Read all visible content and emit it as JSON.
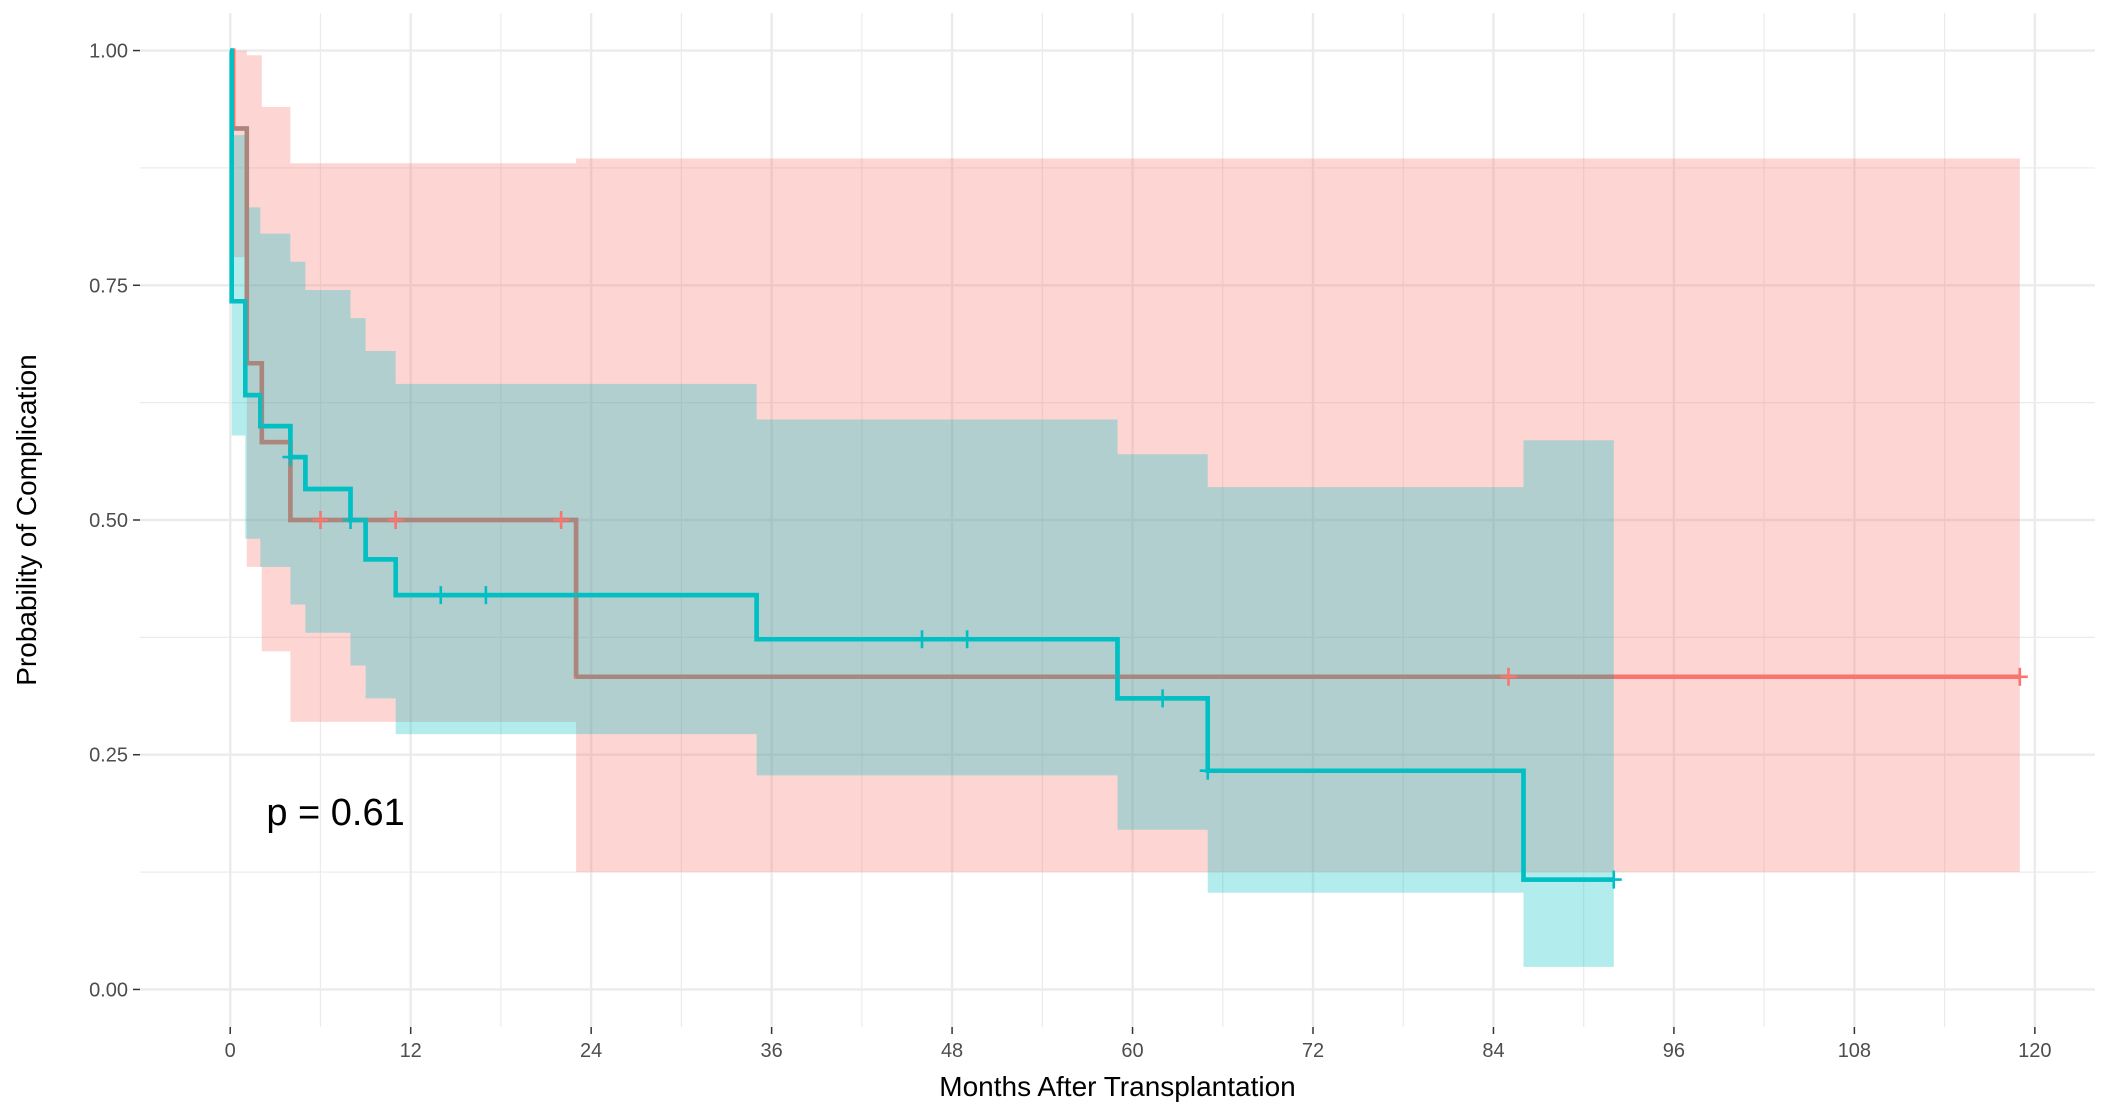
{
  "chart_data": {
    "type": "line",
    "subtype": "kaplan-meier step",
    "title": "",
    "xlabel": "Months After Transplantation",
    "ylabel": "Probability of Complication",
    "xlim": [
      -6,
      124
    ],
    "ylim": [
      -0.04,
      1.04
    ],
    "x_ticks": [
      0,
      12,
      24,
      36,
      48,
      60,
      72,
      84,
      96,
      108,
      120
    ],
    "x_tick_labels": [
      "0",
      "12",
      "24",
      "36",
      "48",
      "60",
      "72",
      "84",
      "96",
      "108",
      "120"
    ],
    "y_ticks": [
      0,
      0.25,
      0.5,
      0.75,
      1.0
    ],
    "y_tick_labels": [
      "0.00",
      "0.25",
      "0.50",
      "0.75",
      "1.00"
    ],
    "grid": true,
    "legend": "none",
    "annotation": "p = 0.61",
    "annotation_pos": [
      2.4,
      0.19
    ],
    "colors": {
      "red_group": "#F8766D",
      "teal_group": "#00BFC4",
      "overlap_line": "#A9877F",
      "panel_grid": "#EBEBEB"
    },
    "series": [
      {
        "color": "#F8766D",
        "steps": [
          [
            0,
            1.0
          ],
          [
            0.2,
            0.917
          ],
          [
            1.1,
            0.667
          ],
          [
            2.1,
            0.583
          ],
          [
            4.0,
            0.5
          ],
          [
            23.0,
            0.333
          ],
          [
            119.0,
            0.333
          ]
        ],
        "ci_steps": [
          [
            0,
            1.0,
            1.0
          ],
          [
            0.2,
            0.78,
            1.0
          ],
          [
            1.1,
            0.45,
            0.995
          ],
          [
            2.1,
            0.36,
            0.94
          ],
          [
            4.0,
            0.285,
            0.88
          ],
          [
            23.0,
            0.125,
            0.885
          ],
          [
            119.0,
            0.125,
            0.885
          ]
        ],
        "censor_x": [
          6,
          11,
          22,
          85,
          119
        ]
      },
      {
        "color": "#00BFC4",
        "steps": [
          [
            0,
            1.0
          ],
          [
            0.1,
            0.733
          ],
          [
            1.0,
            0.633
          ],
          [
            2.0,
            0.6
          ],
          [
            4.0,
            0.567
          ],
          [
            5.0,
            0.533
          ],
          [
            8.0,
            0.5
          ],
          [
            9.0,
            0.458
          ],
          [
            11.0,
            0.42
          ],
          [
            35.0,
            0.373
          ],
          [
            59.0,
            0.31
          ],
          [
            65.0,
            0.233
          ],
          [
            86.0,
            0.117
          ],
          [
            92.0,
            0.117
          ]
        ],
        "ci_steps": [
          [
            0,
            1.0,
            1.0
          ],
          [
            0.1,
            0.59,
            0.91
          ],
          [
            1.0,
            0.48,
            0.833
          ],
          [
            2.0,
            0.45,
            0.805
          ],
          [
            4.0,
            0.41,
            0.775
          ],
          [
            5.0,
            0.38,
            0.745
          ],
          [
            8.0,
            0.345,
            0.715
          ],
          [
            9.0,
            0.31,
            0.68
          ],
          [
            11.0,
            0.272,
            0.645
          ],
          [
            35.0,
            0.228,
            0.607
          ],
          [
            59.0,
            0.17,
            0.57
          ],
          [
            65.0,
            0.103,
            0.535
          ],
          [
            86.0,
            0.024,
            0.585
          ],
          [
            92.0,
            0.024,
            0.585
          ]
        ],
        "censor_x": [
          4,
          8,
          14,
          17,
          46,
          49,
          62,
          65,
          92
        ]
      }
    ]
  }
}
